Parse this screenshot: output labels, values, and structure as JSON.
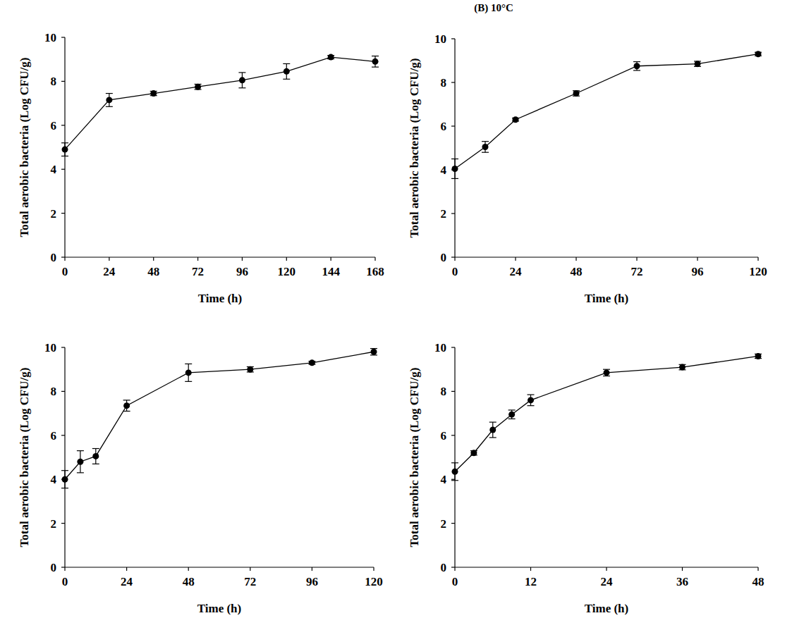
{
  "chart_data": [
    {
      "type": "line",
      "x_label": "Time (h)",
      "y_label": "Total aerobic bacteria (Log CFU/g)",
      "x": [
        0,
        24,
        48,
        72,
        96,
        120,
        144,
        168
      ],
      "values": [
        4.9,
        7.15,
        7.45,
        7.75,
        8.05,
        8.45,
        9.1,
        8.9
      ],
      "errors": [
        0.3,
        0.3,
        0.1,
        0.12,
        0.35,
        0.35,
        0.08,
        0.25
      ],
      "xlim": [
        0,
        168
      ],
      "xticks": [
        0,
        24,
        48,
        72,
        96,
        120,
        144,
        168
      ],
      "ylim": [
        0,
        10
      ],
      "yticks": [
        0,
        2,
        4,
        6,
        8,
        10
      ],
      "color": "#000000",
      "marker": "circle"
    },
    {
      "type": "line",
      "title": "(B) 10°C",
      "x_label": "Time (h)",
      "y_label": "Total aerobic bacteria (Log CFU/g)",
      "x": [
        0,
        12,
        24,
        48,
        72,
        96,
        120
      ],
      "values": [
        4.05,
        5.05,
        6.3,
        7.5,
        8.75,
        8.85,
        9.3
      ],
      "errors": [
        0.45,
        0.25,
        0.07,
        0.12,
        0.2,
        0.12,
        0.08
      ],
      "xlim": [
        0,
        120
      ],
      "xticks": [
        0,
        24,
        48,
        72,
        96,
        120
      ],
      "ylim": [
        0,
        10
      ],
      "yticks": [
        0,
        2,
        4,
        6,
        8,
        10
      ],
      "color": "#000000",
      "marker": "circle"
    },
    {
      "type": "line",
      "x_label": "Time (h)",
      "y_label": "Total aerobic bacteria (Log CFU/g)",
      "x": [
        0,
        6,
        12,
        24,
        48,
        72,
        96,
        120
      ],
      "values": [
        4.0,
        4.8,
        5.05,
        7.35,
        8.85,
        9.0,
        9.3,
        9.8
      ],
      "errors": [
        0.4,
        0.5,
        0.35,
        0.25,
        0.4,
        0.12,
        0.07,
        0.15
      ],
      "xlim": [
        0,
        120
      ],
      "xticks": [
        0,
        24,
        48,
        72,
        96,
        120
      ],
      "ylim": [
        0,
        10
      ],
      "yticks": [
        0,
        2,
        4,
        6,
        8,
        10
      ],
      "color": "#000000",
      "marker": "circle"
    },
    {
      "type": "line",
      "x_label": "Time (h)",
      "y_label": "Total aerobic bacteria (Log CFU/g)",
      "x": [
        0,
        3,
        6,
        9,
        12,
        24,
        36,
        48
      ],
      "values": [
        4.35,
        5.2,
        6.25,
        6.95,
        7.6,
        8.85,
        9.1,
        9.6
      ],
      "errors": [
        0.4,
        0.1,
        0.35,
        0.2,
        0.25,
        0.15,
        0.12,
        0.1
      ],
      "xlim": [
        0,
        48
      ],
      "xticks": [
        0,
        12,
        24,
        36,
        48
      ],
      "ylim": [
        0,
        10
      ],
      "yticks": [
        0,
        2,
        4,
        6,
        8,
        10
      ],
      "color": "#000000",
      "marker": "circle"
    }
  ]
}
